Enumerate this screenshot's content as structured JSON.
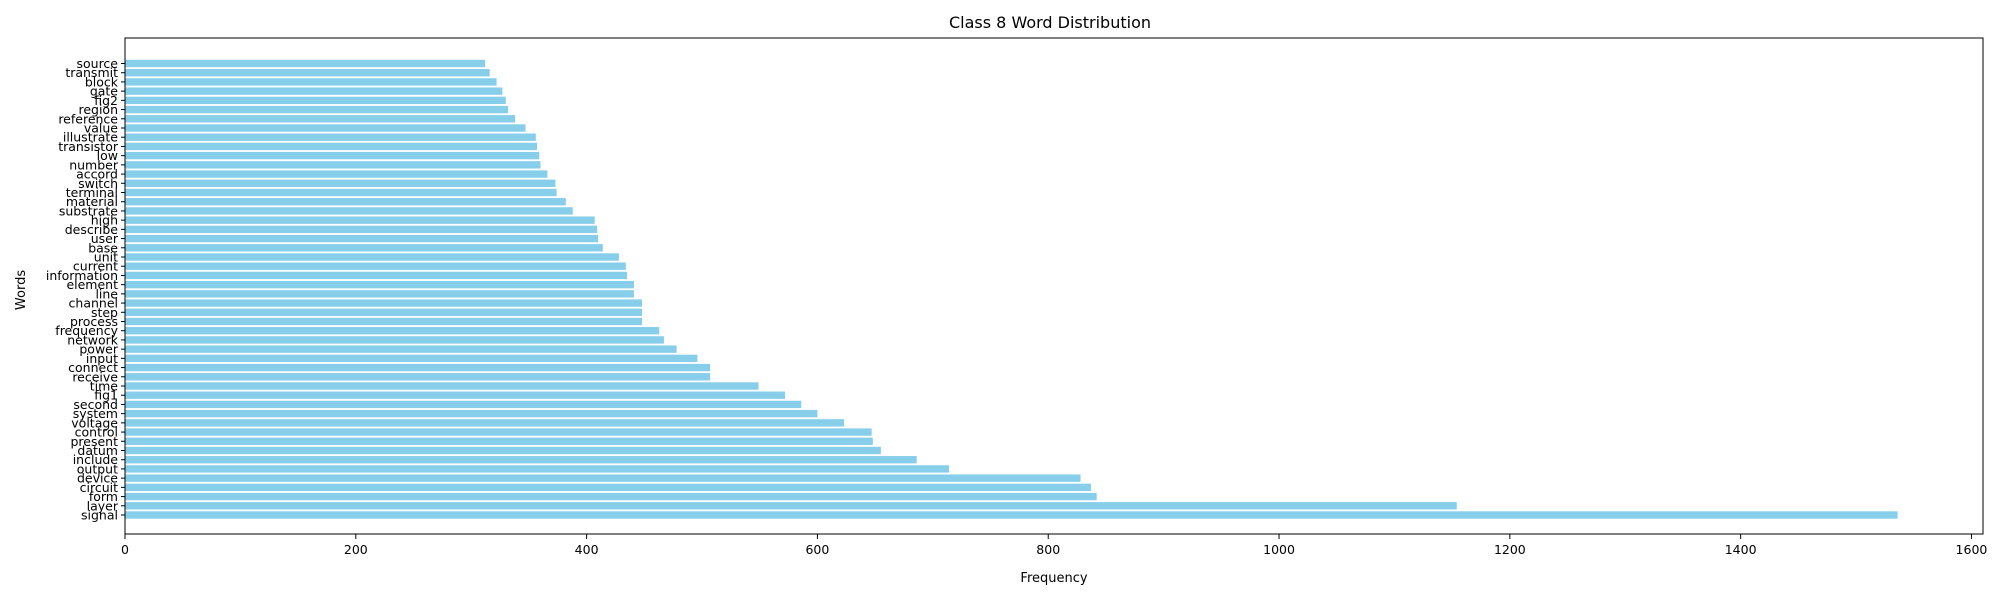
{
  "chart_data": {
    "type": "bar",
    "orientation": "horizontal",
    "title": "Class 8 Word Distribution",
    "xlabel": "Frequency",
    "ylabel": "Words",
    "xlim": [
      0,
      1610
    ],
    "xticks": [
      0,
      200,
      400,
      600,
      800,
      1000,
      1200,
      1400,
      1600
    ],
    "grid": false,
    "bar_color": "#87ceeb",
    "categories": [
      "signal",
      "layer",
      "form",
      "circuit",
      "device",
      "output",
      "include",
      "datum",
      "present",
      "control",
      "voltage",
      "system",
      "second",
      "fig1",
      "time",
      "receive",
      "connect",
      "input",
      "power",
      "network",
      "frequency",
      "process",
      "step",
      "channel",
      "line",
      "element",
      "information",
      "current",
      "unit",
      "base",
      "user",
      "describe",
      "high",
      "substrate",
      "material",
      "terminal",
      "switch",
      "accord",
      "number",
      "low",
      "transistor",
      "illustrate",
      "value",
      "reference",
      "region",
      "fig2",
      "gate",
      "block",
      "transmit",
      "source"
    ],
    "values": [
      1536,
      1154,
      842,
      837,
      828,
      714,
      686,
      655,
      648,
      647,
      623,
      600,
      586,
      572,
      549,
      507,
      507,
      496,
      478,
      467,
      463,
      448,
      448,
      448,
      441,
      441,
      435,
      434,
      428,
      414,
      410,
      409,
      407,
      388,
      382,
      374,
      373,
      366,
      360,
      359,
      357,
      356,
      347,
      338,
      332,
      330,
      327,
      322,
      316,
      312
    ]
  }
}
